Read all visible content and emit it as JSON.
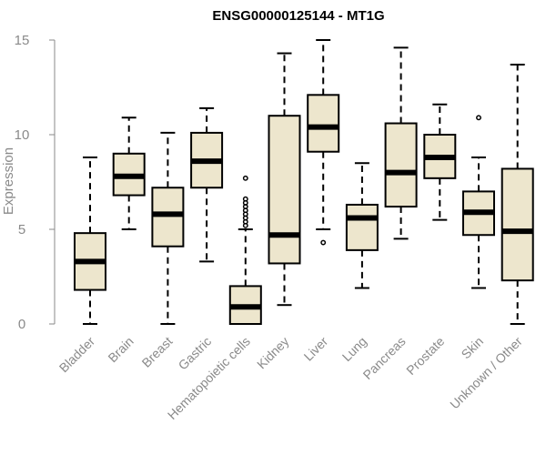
{
  "chart_data": {
    "type": "boxplot",
    "title": "ENSG00000125144 - MT1G",
    "xlabel": "",
    "ylabel": "Expression",
    "ylim": [
      0,
      15
    ],
    "yticks": [
      0,
      5,
      10,
      15
    ],
    "grid": false,
    "colors": {
      "box_fill": "#ede6cd",
      "box_stroke": "#000000",
      "axis": "#8a8a8a"
    },
    "categories": [
      "Bladder",
      "Brain",
      "Breast",
      "Gastric",
      "Hematopoietic cells",
      "Kidney",
      "Liver",
      "Lung",
      "Pancreas",
      "Prostate",
      "Skin",
      "Unknown / Other"
    ],
    "boxes": [
      {
        "category": "Bladder",
        "whisker_low": 0.0,
        "q1": 1.8,
        "median": 3.3,
        "q3": 4.8,
        "whisker_high": 8.8,
        "outliers": []
      },
      {
        "category": "Brain",
        "whisker_low": 5.0,
        "q1": 6.8,
        "median": 7.8,
        "q3": 9.0,
        "whisker_high": 10.9,
        "outliers": []
      },
      {
        "category": "Breast",
        "whisker_low": 0.0,
        "q1": 4.1,
        "median": 5.8,
        "q3": 7.2,
        "whisker_high": 10.1,
        "outliers": []
      },
      {
        "category": "Gastric",
        "whisker_low": 3.3,
        "q1": 7.2,
        "median": 8.6,
        "q3": 10.1,
        "whisker_high": 11.4,
        "outliers": []
      },
      {
        "category": "Hematopoietic cells",
        "whisker_low": 0.0,
        "q1": 0.0,
        "median": 0.9,
        "q3": 2.0,
        "whisker_high": 5.0,
        "outliers": [
          5.2,
          5.4,
          5.6,
          5.8,
          6.0,
          6.2,
          6.4,
          6.6,
          7.7
        ]
      },
      {
        "category": "Kidney",
        "whisker_low": 1.0,
        "q1": 3.2,
        "median": 4.7,
        "q3": 11.0,
        "whisker_high": 14.3,
        "outliers": []
      },
      {
        "category": "Liver",
        "whisker_low": 5.0,
        "q1": 9.1,
        "median": 10.4,
        "q3": 12.1,
        "whisker_high": 15.0,
        "outliers": [
          4.3
        ]
      },
      {
        "category": "Lung",
        "whisker_low": 1.9,
        "q1": 3.9,
        "median": 5.6,
        "q3": 6.3,
        "whisker_high": 8.5,
        "outliers": []
      },
      {
        "category": "Pancreas",
        "whisker_low": 4.5,
        "q1": 6.2,
        "median": 8.0,
        "q3": 10.6,
        "whisker_high": 14.6,
        "outliers": []
      },
      {
        "category": "Prostate",
        "whisker_low": 5.5,
        "q1": 7.7,
        "median": 8.8,
        "q3": 10.0,
        "whisker_high": 11.6,
        "outliers": []
      },
      {
        "category": "Skin",
        "whisker_low": 1.9,
        "q1": 4.7,
        "median": 5.9,
        "q3": 7.0,
        "whisker_high": 8.8,
        "outliers": [
          10.9
        ]
      },
      {
        "category": "Unknown / Other",
        "whisker_low": 0.0,
        "q1": 2.3,
        "median": 4.9,
        "q3": 8.2,
        "whisker_high": 13.7,
        "outliers": []
      }
    ]
  }
}
